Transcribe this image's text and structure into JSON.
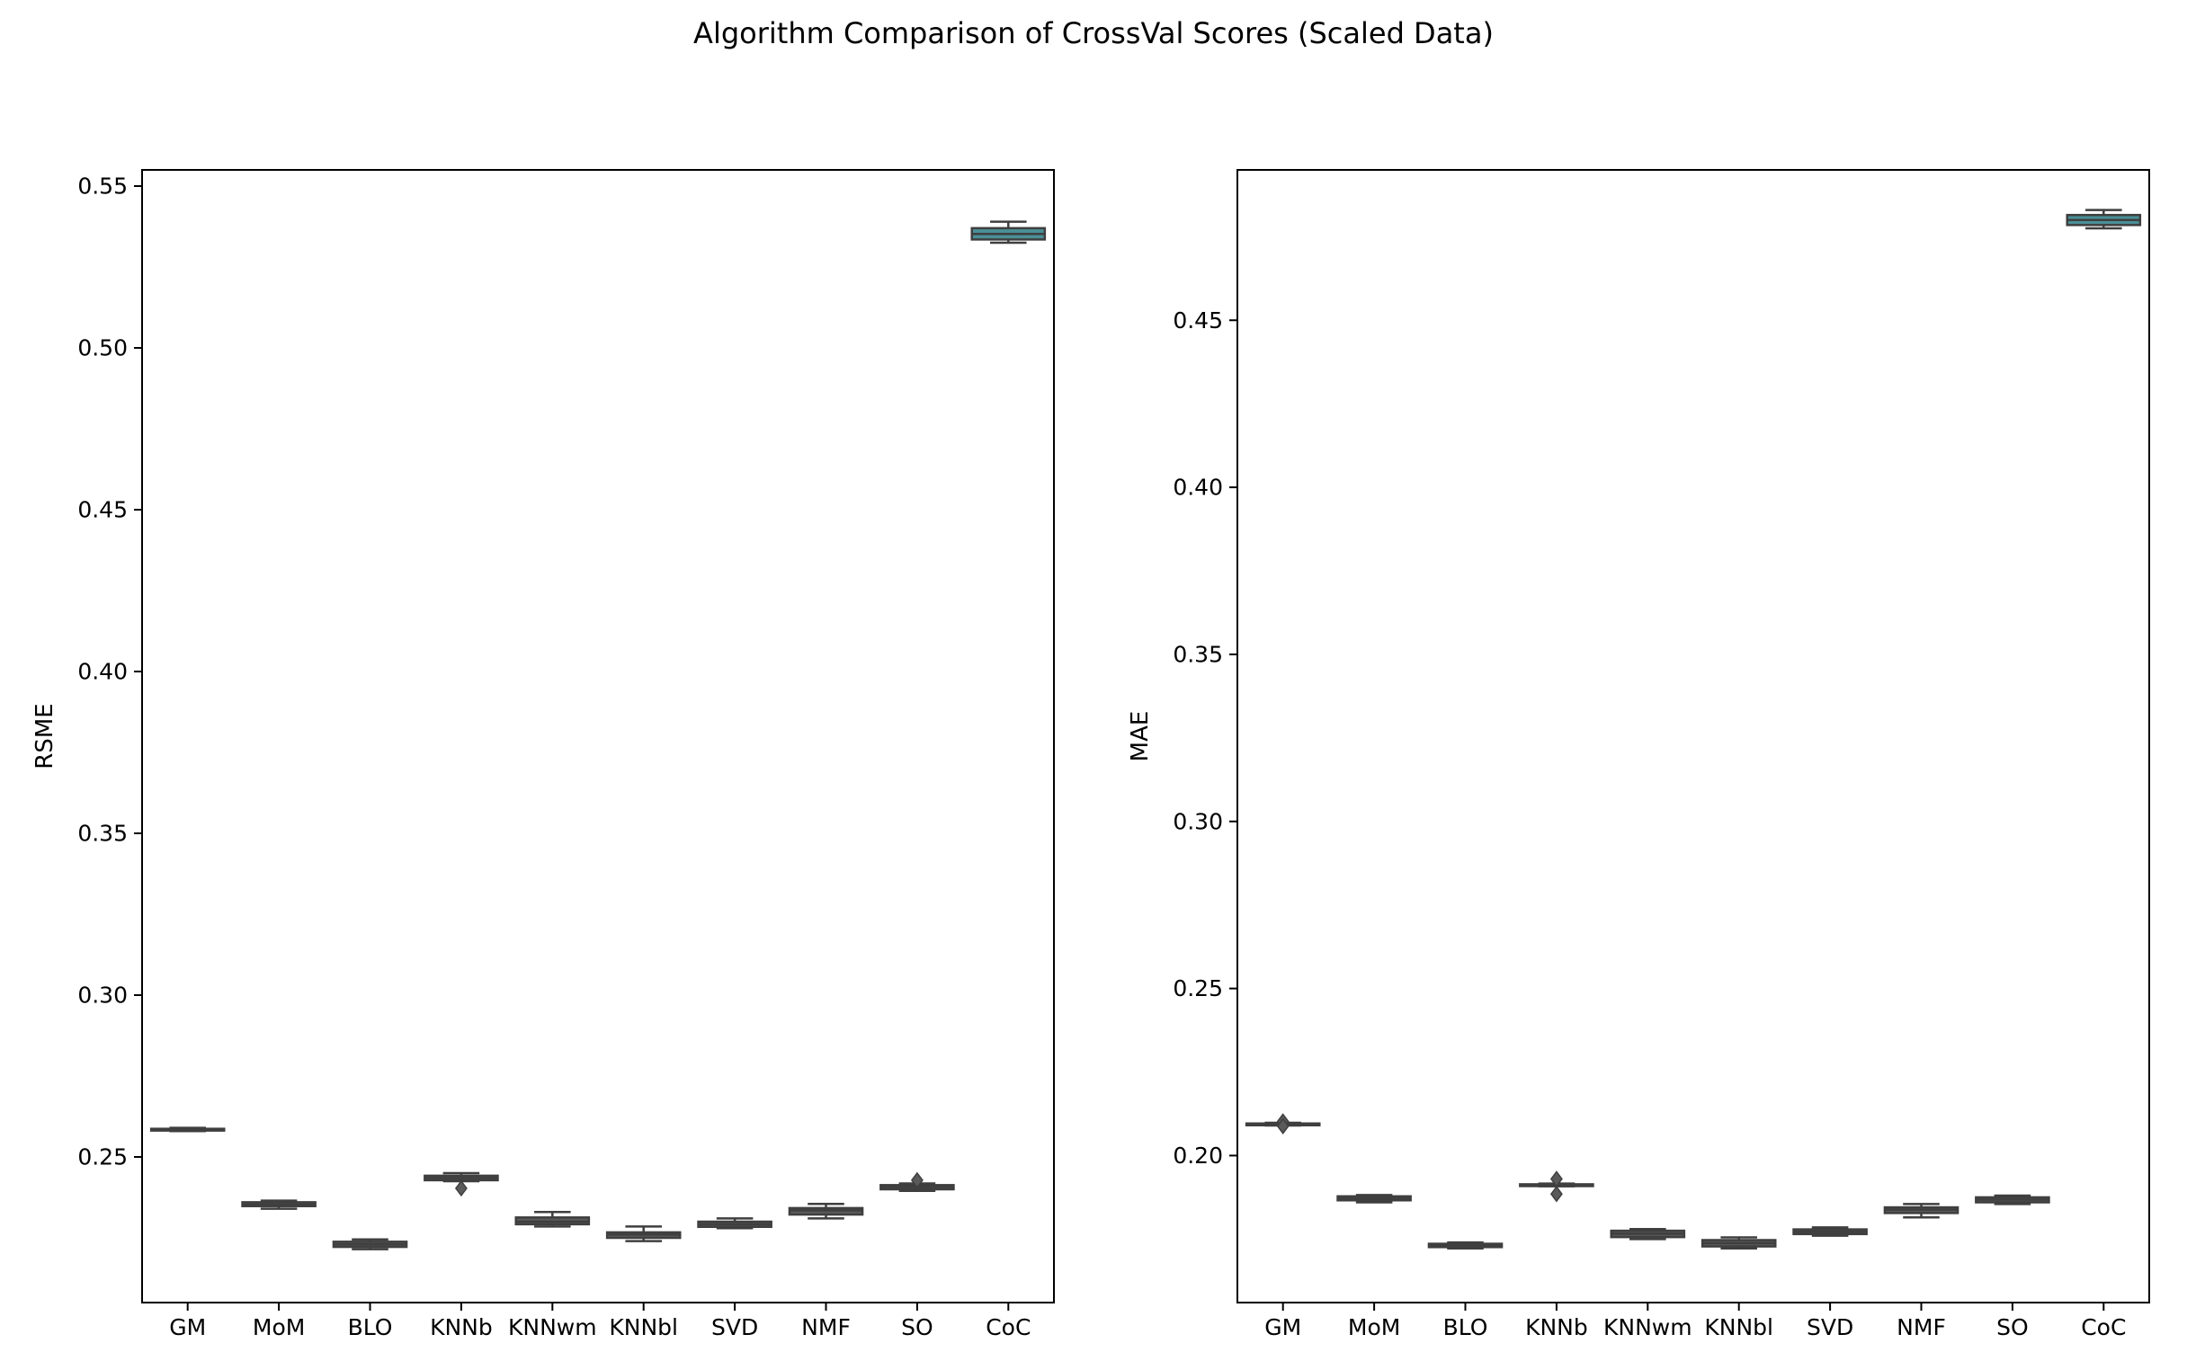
{
  "title": "Algorithm Comparison of CrossVal Scores (Scaled Data)",
  "colors": {
    "box_fill": "#5a5a5a",
    "box_line": "#3f3f3f",
    "coc_fill": "#4a8f97",
    "axis": "#000000"
  },
  "chart_data": [
    {
      "type": "box",
      "ylabel": "RSME",
      "ylim": [
        0.205,
        0.555
      ],
      "yticks": [
        0.25,
        0.3,
        0.35,
        0.4,
        0.45,
        0.5,
        0.55
      ],
      "ytick_labels": [
        "0.25",
        "0.30",
        "0.35",
        "0.40",
        "0.45",
        "0.50",
        "0.55"
      ],
      "categories": [
        "GM",
        "MoM",
        "BLO",
        "KNNb",
        "KNNwm",
        "KNNbl",
        "SVD",
        "NMF",
        "SO",
        "CoC"
      ],
      "boxes": [
        {
          "name": "GM",
          "whislo": 0.258,
          "q1": 0.2583,
          "med": 0.2585,
          "q3": 0.2587,
          "whishi": 0.259,
          "fliers": []
        },
        {
          "name": "MoM",
          "whislo": 0.234,
          "q1": 0.2348,
          "med": 0.2353,
          "q3": 0.236,
          "whishi": 0.2365,
          "fliers": []
        },
        {
          "name": "BLO",
          "whislo": 0.2215,
          "q1": 0.2222,
          "med": 0.223,
          "q3": 0.2238,
          "whishi": 0.2245,
          "fliers": []
        },
        {
          "name": "KNNb",
          "whislo": 0.2425,
          "q1": 0.2428,
          "med": 0.2435,
          "q3": 0.2442,
          "whishi": 0.245,
          "fliers": [
            0.2403
          ]
        },
        {
          "name": "KNNwm",
          "whislo": 0.2285,
          "q1": 0.2292,
          "med": 0.23,
          "q3": 0.2313,
          "whishi": 0.233,
          "fliers": []
        },
        {
          "name": "KNNbl",
          "whislo": 0.224,
          "q1": 0.225,
          "med": 0.226,
          "q3": 0.2267,
          "whishi": 0.2285,
          "fliers": []
        },
        {
          "name": "SVD",
          "whislo": 0.228,
          "q1": 0.2284,
          "med": 0.2292,
          "q3": 0.23,
          "whishi": 0.231,
          "fliers": []
        },
        {
          "name": "NMF",
          "whislo": 0.231,
          "q1": 0.2322,
          "med": 0.2335,
          "q3": 0.2342,
          "whishi": 0.2355,
          "fliers": []
        },
        {
          "name": "SO",
          "whislo": 0.2395,
          "q1": 0.24,
          "med": 0.2407,
          "q3": 0.2413,
          "whishi": 0.2418,
          "fliers": [
            0.2428
          ]
        },
        {
          "name": "CoC",
          "whislo": 0.5325,
          "q1": 0.5335,
          "med": 0.5352,
          "q3": 0.537,
          "whishi": 0.539,
          "fliers": []
        }
      ]
    },
    {
      "type": "box",
      "ylabel": "MAE",
      "ylim": [
        0.156,
        0.495
      ],
      "yticks": [
        0.2,
        0.25,
        0.3,
        0.35,
        0.4,
        0.45
      ],
      "ytick_labels": [
        "0.20",
        "0.25",
        "0.30",
        "0.35",
        "0.40",
        "0.45"
      ],
      "categories": [
        "GM",
        "MoM",
        "BLO",
        "KNNb",
        "KNNwm",
        "KNNbl",
        "SVD",
        "NMF",
        "SO",
        "CoC"
      ],
      "boxes": [
        {
          "name": "GM",
          "whislo": 0.209,
          "q1": 0.2092,
          "med": 0.2094,
          "q3": 0.2096,
          "whishi": 0.2098,
          "fliers": [
            0.2102,
            0.2088
          ]
        },
        {
          "name": "MoM",
          "whislo": 0.186,
          "q1": 0.1866,
          "med": 0.1872,
          "q3": 0.1878,
          "whishi": 0.1882,
          "fliers": []
        },
        {
          "name": "BLO",
          "whislo": 0.1722,
          "q1": 0.1726,
          "med": 0.1732,
          "q3": 0.1736,
          "whishi": 0.174,
          "fliers": []
        },
        {
          "name": "KNNb",
          "whislo": 0.1908,
          "q1": 0.191,
          "med": 0.1912,
          "q3": 0.1914,
          "whishi": 0.1916,
          "fliers": [
            0.193,
            0.1885
          ]
        },
        {
          "name": "KNNwm",
          "whislo": 0.175,
          "q1": 0.1756,
          "med": 0.1766,
          "q3": 0.1775,
          "whishi": 0.178,
          "fliers": []
        },
        {
          "name": "KNNbl",
          "whislo": 0.1722,
          "q1": 0.1728,
          "med": 0.1738,
          "q3": 0.1747,
          "whishi": 0.1755,
          "fliers": []
        },
        {
          "name": "SVD",
          "whislo": 0.176,
          "q1": 0.1765,
          "med": 0.1772,
          "q3": 0.1779,
          "whishi": 0.1785,
          "fliers": []
        },
        {
          "name": "NMF",
          "whislo": 0.1815,
          "q1": 0.1828,
          "med": 0.1838,
          "q3": 0.1845,
          "whishi": 0.1855,
          "fliers": []
        },
        {
          "name": "SO",
          "whislo": 0.1855,
          "q1": 0.186,
          "med": 0.1868,
          "q3": 0.1875,
          "whishi": 0.188,
          "fliers": []
        },
        {
          "name": "CoC",
          "whislo": 0.4775,
          "q1": 0.4785,
          "med": 0.48,
          "q3": 0.4815,
          "whishi": 0.483,
          "fliers": []
        }
      ]
    }
  ]
}
